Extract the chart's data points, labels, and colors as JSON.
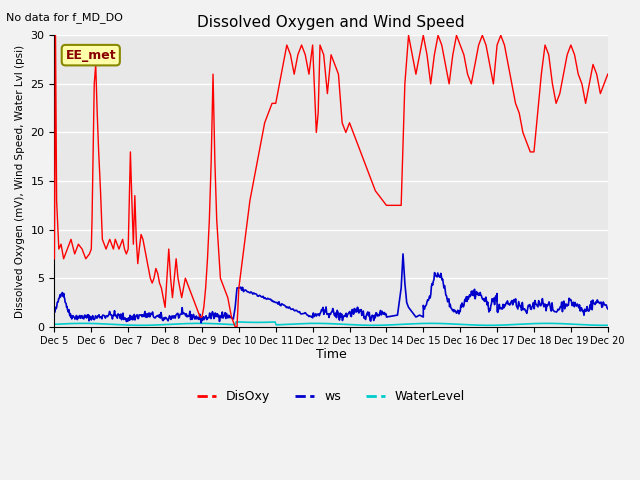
{
  "title": "Dissolved Oxygen and Wind Speed",
  "subtitle": "No data for f_MD_DO",
  "ylabel": "Dissolved Oxygen (mV), Wind Speed, Water Lvl (psi)",
  "xlabel": "Time",
  "xlim": [
    0,
    15
  ],
  "ylim": [
    0,
    30
  ],
  "yticks": [
    0,
    5,
    10,
    15,
    20,
    25,
    30
  ],
  "xtick_labels": [
    "Dec 5",
    "Dec 6",
    "Dec 7",
    "Dec 8",
    "Dec 9",
    "Dec 10",
    "Dec 11",
    "Dec 12",
    "Dec 13",
    "Dec 14",
    "Dec 15",
    "Dec 16",
    "Dec 17",
    "Dec 18",
    "Dec 19",
    "Dec 20"
  ],
  "annotation_box": "EE_met",
  "fig_bg_color": "#f2f2f2",
  "plot_bg_color": "#e8e8e8",
  "grid_color": "#ffffff",
  "DisOxy_color": "#ff0000",
  "ws_color": "#0000cc",
  "WaterLevel_color": "#00cccc",
  "legend_labels": [
    "DisOxy",
    "ws",
    "WaterLevel"
  ],
  "disoxy_lw": 1.0,
  "ws_lw": 1.2,
  "wl_lw": 1.2,
  "annotation_color": "#880000",
  "annotation_bg": "#ffffaa",
  "annotation_edge": "#888800"
}
